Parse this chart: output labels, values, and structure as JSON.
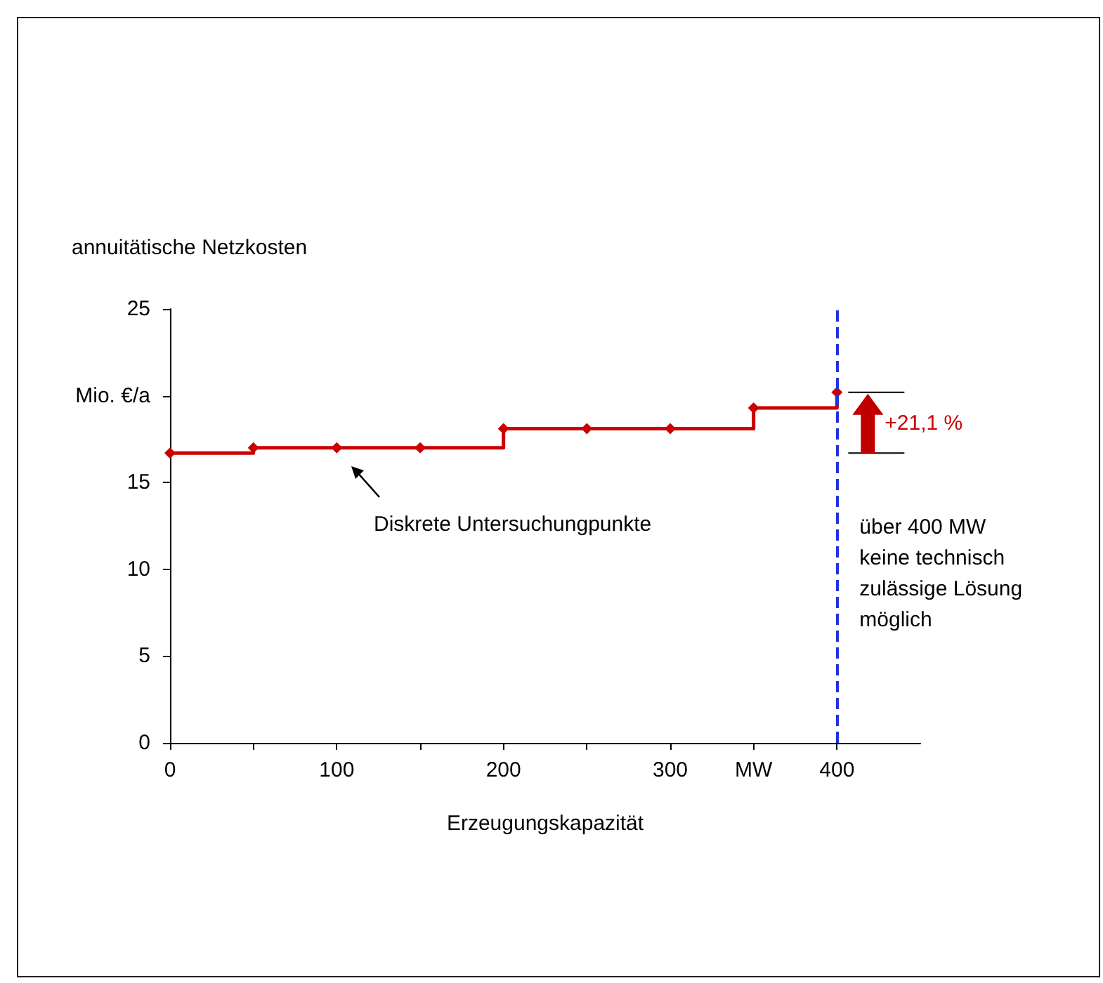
{
  "chart_data": {
    "type": "step",
    "xlabel": "Erzeugungskapazität",
    "ylabel": "annuitätische Netzkosten",
    "x": [
      0,
      50,
      100,
      150,
      200,
      250,
      300,
      350,
      400
    ],
    "series": [
      {
        "color": "#cc0000",
        "values": [
          16.7,
          17.0,
          17.0,
          17.0,
          18.1,
          18.1,
          18.1,
          19.3,
          20.2
        ]
      }
    ],
    "xlim": [
      0,
      450
    ],
    "xticks": [
      0,
      {
        "value": 50,
        "label": null
      },
      100,
      {
        "value": 150,
        "label": null
      },
      200,
      {
        "value": 250,
        "label": null
      },
      300,
      {
        "value": 350,
        "label": "MW"
      },
      400
    ],
    "ylim": [
      0,
      25
    ],
    "yticks": [
      0,
      5,
      10,
      15,
      {
        "value": 20,
        "label": "Mio. €/a"
      },
      25
    ],
    "marker": "diamond",
    "line_style": "solid",
    "grid": false,
    "ref_lines": [
      {
        "axis": "x",
        "value": 400,
        "label": "über 400 MW keine technisch zulässige Lösung möglich",
        "color": "#2233dd",
        "line_style": "dashed"
      }
    ],
    "annotations": [
      "Diskrete Untersuchungpunkte",
      {
        "text": "+21,1 %",
        "x": 400,
        "y": 20.2
      }
    ]
  }
}
